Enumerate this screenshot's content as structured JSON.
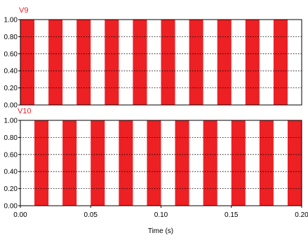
{
  "chart_data": [
    {
      "type": "area",
      "series": [
        {
          "name": "V9",
          "period": 0.02,
          "duty": 0.5,
          "phase": 0.0,
          "low": 0,
          "high": 1,
          "color": "#ed2024"
        }
      ],
      "xlim": [
        0,
        0.2
      ],
      "ylim": [
        0,
        1
      ],
      "yticks": [
        0,
        0.2,
        0.4,
        0.6,
        0.8,
        1.0
      ],
      "ytick_labels": [
        "0.00",
        "0.20",
        "0.40",
        "0.60",
        "0.80",
        "1.00"
      ],
      "grid": "horizontal dashed",
      "xlabel": "",
      "ylabel": ""
    },
    {
      "type": "area",
      "series": [
        {
          "name": "V10",
          "period": 0.02,
          "duty": 0.5,
          "phase": 0.01,
          "low": 0,
          "high": 1,
          "color": "#ed2024"
        }
      ],
      "xlim": [
        0,
        0.2
      ],
      "ylim": [
        0,
        1
      ],
      "xticks": [
        0,
        0.05,
        0.1,
        0.15,
        0.2
      ],
      "xtick_labels": [
        "0.00",
        "0.05",
        "0.10",
        "0.15",
        "0.20"
      ],
      "yticks": [
        0,
        0.2,
        0.4,
        0.6,
        0.8,
        1.0
      ],
      "ytick_labels": [
        "0.00",
        "0.20",
        "0.40",
        "0.60",
        "0.80",
        "1.00"
      ],
      "grid": "horizontal dashed",
      "xlabel": "Time (s)",
      "ylabel": ""
    }
  ]
}
